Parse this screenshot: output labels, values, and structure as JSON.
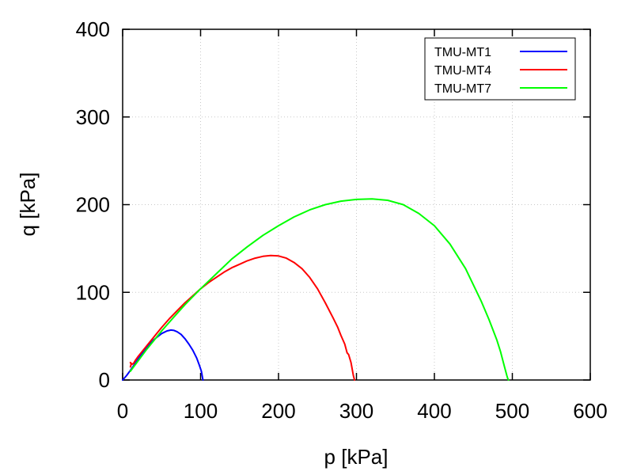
{
  "chart_data": {
    "type": "line",
    "title": "",
    "xlabel": "p [kPa]",
    "ylabel": "q [kPa]",
    "xlim": [
      0,
      600
    ],
    "ylim": [
      0,
      400
    ],
    "xticks": [
      0,
      100,
      200,
      300,
      400,
      500,
      600
    ],
    "yticks": [
      0,
      100,
      200,
      300,
      400
    ],
    "grid": true,
    "legend_position": "top-right",
    "series": [
      {
        "name": "TMU-MT1",
        "color": "#0000ff",
        "x": [
          0,
          5,
          10,
          20,
          30,
          40,
          50,
          57,
          62,
          66,
          70,
          75,
          80,
          85,
          90,
          95,
          98,
          101,
          102,
          103
        ],
        "y": [
          0,
          5,
          11,
          24,
          36,
          46,
          53,
          56,
          57,
          56.5,
          55,
          52,
          47,
          41,
          34,
          25,
          18,
          10,
          5,
          0
        ]
      },
      {
        "name": "TMU-MT4",
        "color": "#ff0000",
        "x": [
          10,
          11,
          10,
          12,
          14,
          16,
          20,
          30,
          40,
          50,
          60,
          70,
          80,
          90,
          100,
          110,
          120,
          130,
          140,
          150,
          160,
          170,
          180,
          190,
          200,
          210,
          220,
          230,
          240,
          250,
          260,
          270,
          276,
          280,
          285,
          288,
          290,
          293,
          295,
          296,
          297,
          297.5
        ],
        "y": [
          15,
          18,
          20,
          18,
          19,
          22,
          27,
          38,
          49,
          60,
          70,
          79,
          88,
          96,
          104,
          111,
          117,
          123,
          128,
          132,
          136,
          139,
          141,
          142,
          141.5,
          139,
          134,
          127,
          117,
          104,
          88,
          71,
          60,
          51,
          41,
          31,
          29,
          20,
          10,
          5,
          2,
          0
        ],
        "note": "slight pinch near p≈290"
      },
      {
        "name": "TMU-MT7",
        "color": "#00ff00",
        "x": [
          10,
          20,
          30,
          40,
          50,
          60,
          70,
          80,
          90,
          100,
          120,
          140,
          160,
          180,
          200,
          220,
          240,
          260,
          280,
          300,
          320,
          340,
          360,
          380,
          400,
          420,
          440,
          460,
          470,
          480,
          485,
          490,
          493,
          494,
          495
        ],
        "y": [
          10,
          22,
          34,
          45,
          56,
          66,
          76,
          86,
          95,
          104,
          121,
          138,
          152,
          165,
          176,
          186,
          194,
          200,
          204,
          206,
          206.5,
          205,
          200,
          190,
          176,
          155,
          127,
          90,
          69,
          46,
          32,
          15,
          5,
          2,
          0
        ]
      }
    ]
  }
}
